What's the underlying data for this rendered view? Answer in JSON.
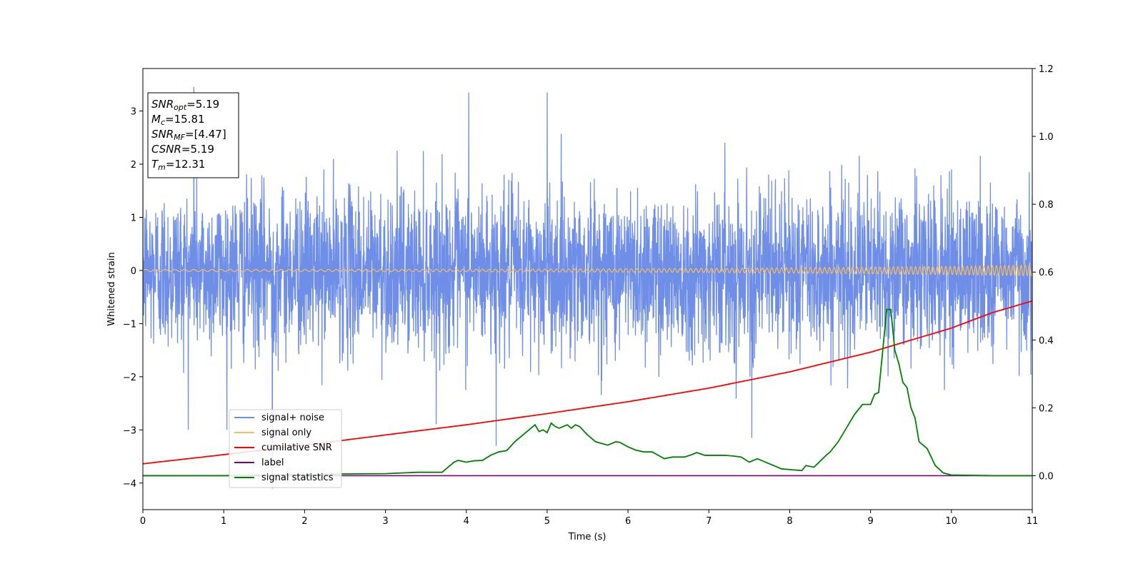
{
  "chart_data": {
    "type": "line",
    "xlabel": "Time (s)",
    "ylabel": "Whitened strain",
    "xlim": [
      0,
      11
    ],
    "ylim_left": [
      -4.5,
      3.8
    ],
    "ylim_right": [
      -0.1,
      1.2
    ],
    "x_ticks": [
      0,
      1,
      2,
      3,
      4,
      5,
      6,
      7,
      8,
      9,
      10,
      11
    ],
    "y_ticks_left": [
      -4,
      -3,
      -2,
      -1,
      0,
      1,
      2,
      3
    ],
    "y_ticks_left_labels": [
      "−4",
      "−3",
      "−2",
      "−1",
      "0",
      "1",
      "2",
      "3"
    ],
    "y_ticks_right": [
      0.0,
      0.2,
      0.4,
      0.6,
      0.8,
      1.0,
      1.2
    ],
    "y_ticks_right_labels": [
      "0.0",
      "0.2",
      "0.4",
      "0.6",
      "0.8",
      "1.0",
      "1.2"
    ],
    "grid": false,
    "legend_position": "lower-left",
    "series": [
      {
        "name": "signal+ noise",
        "axis": "left",
        "color": "#6f8ee8",
        "style": "dense noise spanning about -2 to 2 with spikes up to 3.5 and down to -4.1",
        "spikes": [
          [
            0.63,
            3.45
          ],
          [
            4.03,
            3.35
          ],
          [
            5.0,
            3.35
          ],
          [
            1.6,
            -4.1
          ],
          [
            4.37,
            -3.3
          ],
          [
            7.53,
            -3.15
          ]
        ]
      },
      {
        "name": "signal only",
        "axis": "left",
        "color": "#f7be5b",
        "amplitude_start": 0.02,
        "amplitude_end": 0.1
      },
      {
        "name": "cumilative SNR",
        "axis": "right",
        "color": "#ff0000",
        "x": [
          0,
          1,
          2,
          3,
          4,
          5,
          6,
          7,
          8,
          9,
          10,
          10.5,
          11
        ],
        "y": [
          0.035,
          0.062,
          0.09,
          0.12,
          0.15,
          0.183,
          0.218,
          0.258,
          0.306,
          0.364,
          0.435,
          0.48,
          0.515
        ]
      },
      {
        "name": "label",
        "axis": "right",
        "color": "#800080",
        "x": [
          0,
          11
        ],
        "y": [
          0.0,
          0.0
        ]
      },
      {
        "name": "signal statistics",
        "axis": "right",
        "color": "#008000",
        "x": [
          0,
          1,
          2,
          2.5,
          3,
          3.4,
          3.7,
          3.8,
          3.85,
          3.9,
          4.0,
          4.1,
          4.2,
          4.3,
          4.4,
          4.5,
          4.6,
          4.7,
          4.75,
          4.8,
          4.85,
          4.9,
          4.95,
          5.0,
          5.05,
          5.1,
          5.15,
          5.2,
          5.25,
          5.3,
          5.35,
          5.4,
          5.5,
          5.6,
          5.75,
          5.8,
          5.85,
          5.9,
          6.0,
          6.1,
          6.2,
          6.3,
          6.45,
          6.55,
          6.7,
          6.8,
          6.85,
          6.95,
          7.05,
          7.2,
          7.3,
          7.4,
          7.5,
          7.6,
          7.75,
          7.9,
          8.0,
          8.15,
          8.2,
          8.3,
          8.45,
          8.5,
          8.6,
          8.75,
          8.8,
          8.9,
          9.0,
          9.05,
          9.1,
          9.2,
          9.25,
          9.3,
          9.35,
          9.4,
          9.45,
          9.5,
          9.55,
          9.6,
          9.7,
          9.8,
          9.9,
          10.0,
          10.5,
          11
        ],
        "y": [
          0.0,
          0.0,
          0.003,
          0.005,
          0.006,
          0.01,
          0.01,
          0.03,
          0.04,
          0.045,
          0.04,
          0.044,
          0.045,
          0.06,
          0.07,
          0.074,
          0.1,
          0.12,
          0.13,
          0.14,
          0.15,
          0.13,
          0.135,
          0.127,
          0.155,
          0.145,
          0.14,
          0.145,
          0.15,
          0.14,
          0.15,
          0.145,
          0.12,
          0.1,
          0.09,
          0.095,
          0.1,
          0.098,
          0.085,
          0.075,
          0.07,
          0.07,
          0.05,
          0.055,
          0.055,
          0.063,
          0.068,
          0.06,
          0.06,
          0.06,
          0.058,
          0.055,
          0.04,
          0.05,
          0.035,
          0.02,
          0.018,
          0.015,
          0.03,
          0.025,
          0.06,
          0.07,
          0.1,
          0.16,
          0.18,
          0.21,
          0.21,
          0.24,
          0.245,
          0.49,
          0.49,
          0.37,
          0.33,
          0.275,
          0.26,
          0.2,
          0.17,
          0.1,
          0.08,
          0.03,
          0.008,
          0.002,
          0.0,
          0.0
        ]
      }
    ],
    "annotations": {
      "stats_box": [
        {
          "base": "SNR",
          "sub": "opt",
          "value": "=5.19"
        },
        {
          "base": "M",
          "sub": "c",
          "value": "=15.81"
        },
        {
          "base": "SNR",
          "sub": "MF",
          "value": "=[4.47]"
        },
        {
          "base": "CSNR",
          "sub": "",
          "value": "=5.19"
        },
        {
          "base": "T",
          "sub": "m",
          "value": "=12.31"
        }
      ]
    }
  }
}
